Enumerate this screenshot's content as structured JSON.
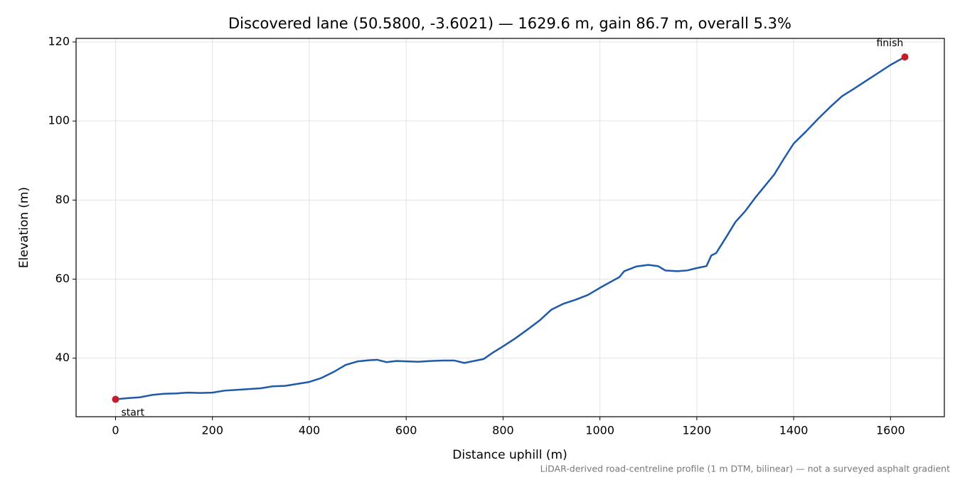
{
  "chart_data": {
    "type": "line",
    "title": "Discovered lane (50.5800, -3.6021) — 1629.6 m, gain 86.7 m, overall 5.3%",
    "x_label": "Distance uphill (m)",
    "y_label": "Elevation (m)",
    "footnote": "LiDAR-derived road-centreline profile (1 m DTM, bilinear) — not a surveyed asphalt gradient",
    "xlim": [
      -81.5,
      1711.1
    ],
    "ylim": [
      25.2,
      120.9
    ],
    "xticks": [
      0,
      200,
      400,
      600,
      800,
      1000,
      1200,
      1400,
      1600
    ],
    "yticks": [
      40,
      60,
      80,
      100,
      120
    ],
    "grid": true,
    "series": [
      {
        "color": "#1f5aa8",
        "x": [
          0,
          25,
          50,
          75,
          100,
          125,
          150,
          175,
          200,
          225,
          250,
          275,
          300,
          325,
          350,
          375,
          400,
          425,
          450,
          475,
          500,
          525,
          540,
          560,
          580,
          600,
          625,
          650,
          675,
          700,
          720,
          740,
          760,
          780,
          800,
          825,
          850,
          875,
          900,
          925,
          950,
          975,
          1000,
          1025,
          1040,
          1050,
          1075,
          1100,
          1120,
          1135,
          1160,
          1180,
          1200,
          1220,
          1230,
          1240,
          1260,
          1280,
          1300,
          1320,
          1340,
          1360,
          1380,
          1400,
          1425,
          1450,
          1475,
          1500,
          1525,
          1550,
          1575,
          1600,
          1629.6
        ],
        "values": [
          29.6,
          29.9,
          30.1,
          30.7,
          31.0,
          31.1,
          31.3,
          31.2,
          31.3,
          31.8,
          32.0,
          32.2,
          32.4,
          32.9,
          33.0,
          33.5,
          34.0,
          35.0,
          36.5,
          38.3,
          39.2,
          39.5,
          39.6,
          39.0,
          39.3,
          39.2,
          39.1,
          39.3,
          39.4,
          39.4,
          38.8,
          39.3,
          39.8,
          41.5,
          43.0,
          45.0,
          47.2,
          49.5,
          52.3,
          53.8,
          54.8,
          56.0,
          57.8,
          59.5,
          60.5,
          62.0,
          63.2,
          63.6,
          63.3,
          62.2,
          62.0,
          62.2,
          62.8,
          63.3,
          66.0,
          66.6,
          70.5,
          74.5,
          77.2,
          80.5,
          83.5,
          86.5,
          90.5,
          94.3,
          97.3,
          100.5,
          103.5,
          106.3,
          108.2,
          110.2,
          112.2,
          114.2,
          116.2
        ]
      }
    ],
    "endpoints": {
      "color": "#c41e2c",
      "x": [
        0,
        1629.6
      ],
      "y": [
        29.6,
        116.2
      ],
      "labels": [
        "start",
        "finish"
      ]
    }
  }
}
